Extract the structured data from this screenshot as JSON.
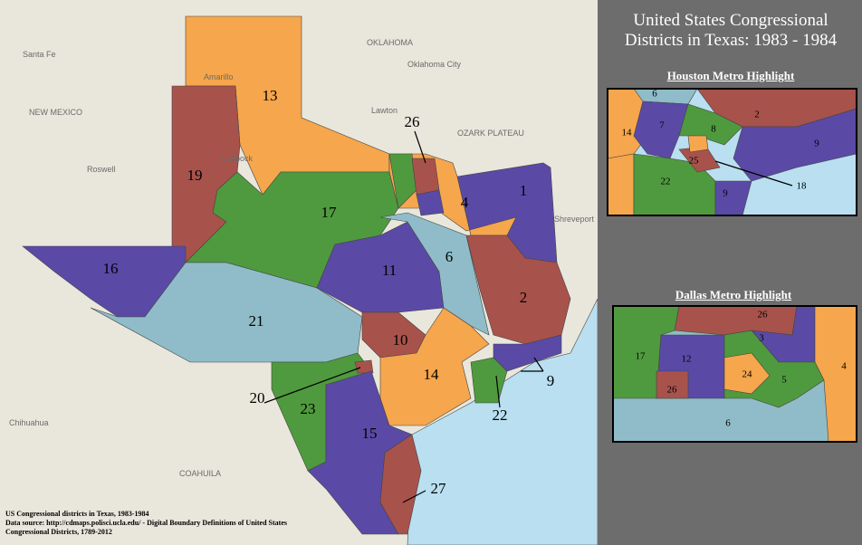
{
  "title": "United States Congressional Districts in Texas: 1983 - 1984",
  "houston_inset": {
    "title": "Houston Metro Highlight",
    "labels": [
      "6",
      "2",
      "7",
      "8",
      "14",
      "9",
      "25",
      "22",
      "9",
      "18"
    ]
  },
  "dallas_inset": {
    "title": "Dallas Metro Highlight",
    "labels": [
      "26",
      "3",
      "17",
      "12",
      "4",
      "24",
      "5",
      "26",
      "6"
    ]
  },
  "districts": [
    "13",
    "19",
    "26",
    "17",
    "1",
    "4",
    "16",
    "11",
    "6",
    "21",
    "2",
    "10",
    "14",
    "9",
    "20",
    "23",
    "22",
    "15",
    "27"
  ],
  "basemap_labels": [
    "OKLAHOMA",
    "NEW MEXICO",
    "Oklahoma City",
    "Santa Fe",
    "OZARK PLATEAU",
    "Chihuahua",
    "COAHUILA",
    "Roswell",
    "Lubbock",
    "Amarillo",
    "Shreveport",
    "Lawton"
  ],
  "source": [
    "US Congressional districts in Texas, 1983-1984",
    "Data source: http://cdmaps.polisci.ucla.edu/ - Digital Boundary Definitions of United States",
    "Congressional Districts, 1789-2012"
  ]
}
